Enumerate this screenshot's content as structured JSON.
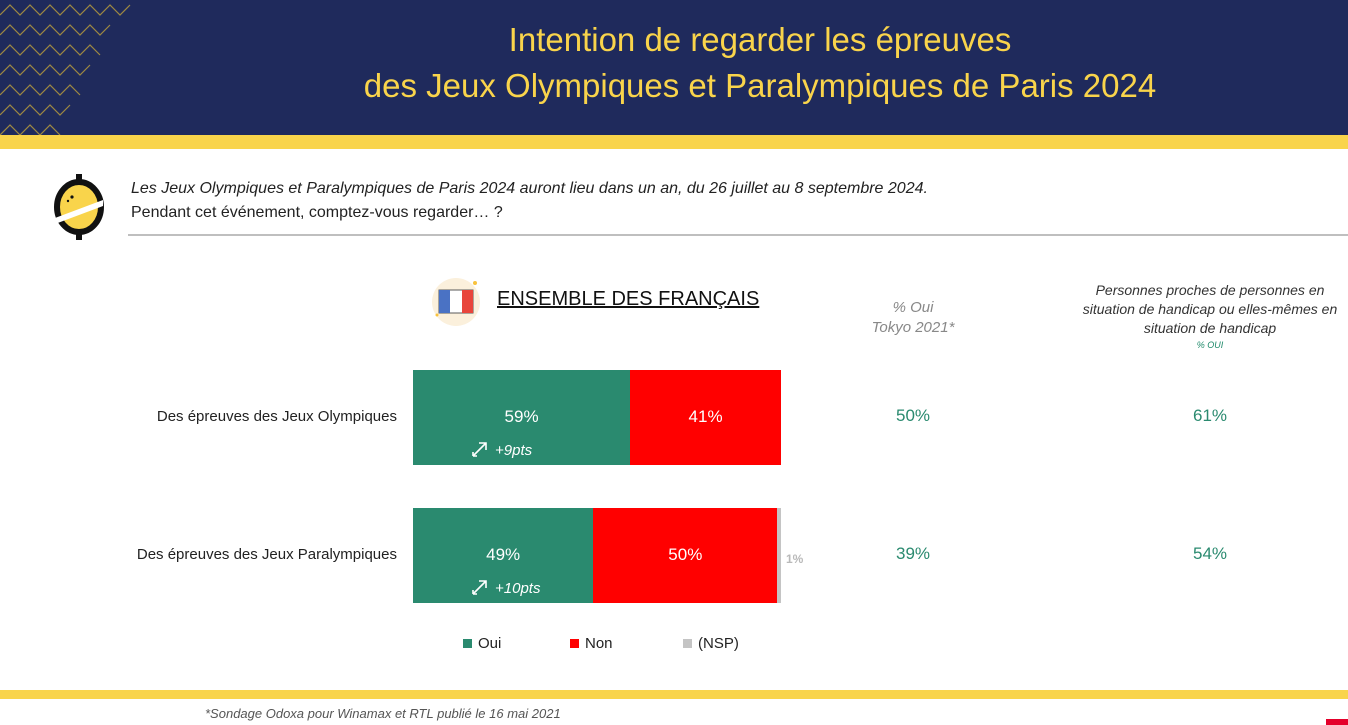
{
  "title": {
    "line1": "Intention de regarder les épreuves",
    "line2": "des Jeux Olympiques et Paralympiques de Paris 2024"
  },
  "intro": {
    "line1": "Les Jeux Olympiques et Paralympiques de Paris 2024 auront lieu dans un an, du 26 juillet au 8 septembre 2024.",
    "line2": "Pendant cet événement, comptez-vous regarder… ?"
  },
  "section_title": "ENSEMBLE DES FRANÇAIS",
  "columns": {
    "tokyo_line1": "% Oui",
    "tokyo_line2": "Tokyo 2021*",
    "handicap_line1": "Personnes proches de personnes en",
    "handicap_line2": "situation de handicap ou elles-mêmes en",
    "handicap_line3": "situation de handicap",
    "handicap_sub": "% OUI"
  },
  "colors": {
    "oui": "#2a8a6f",
    "non": "#ff0000",
    "nsp": "#c4c4c4",
    "navy": "#1f2a5c",
    "yellow": "#f9d44b"
  },
  "chart_data": {
    "type": "bar",
    "orientation": "horizontal",
    "stacked": true,
    "categories": [
      "Des épreuves des Jeux Olympiques",
      "Des épreuves des Jeux Paralympiques"
    ],
    "series": [
      {
        "name": "Oui",
        "values": [
          59,
          49
        ],
        "labels": [
          "59%",
          "49%"
        ]
      },
      {
        "name": "Non",
        "values": [
          41,
          50
        ],
        "labels": [
          "41%",
          "50%"
        ]
      },
      {
        "name": "(NSP)",
        "values": [
          0,
          1
        ],
        "labels": [
          "",
          "1%"
        ]
      }
    ],
    "deltas": [
      "+9pts",
      "+10pts"
    ],
    "tokyo_2021": [
      "50%",
      "39%"
    ],
    "handicap": [
      "61%",
      "54%"
    ],
    "legend_position": "bottom"
  },
  "icons": {
    "arrow": "up-right-arrow-icon",
    "flag": "french-flag-icon",
    "logo": "odoxa-logo-icon"
  },
  "footnote": "*Sondage Odoxa pour Winamax et RTL publié le 16 mai 2021"
}
